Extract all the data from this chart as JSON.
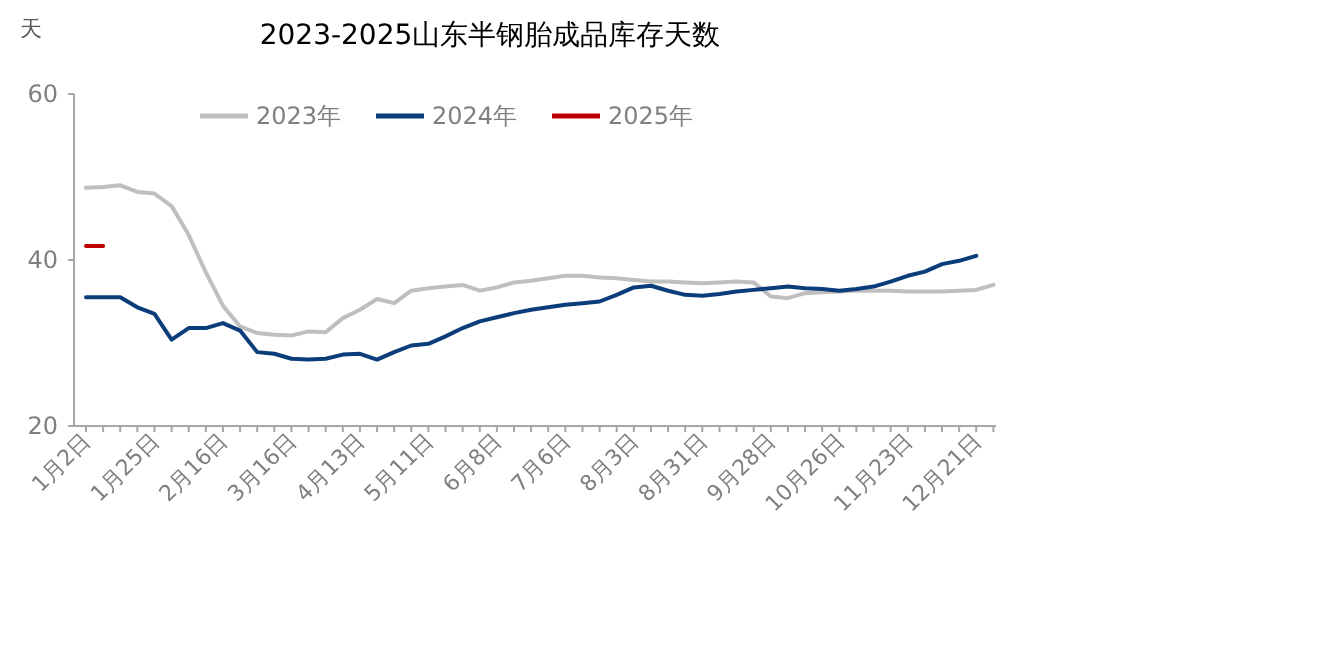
{
  "chart_data": {
    "type": "line",
    "title": "2023-2025山东半钢胎成品库存天数",
    "ylabel": "天",
    "categories": [
      "1月2日",
      null,
      null,
      null,
      "1月25日",
      null,
      null,
      null,
      "2月16日",
      null,
      null,
      null,
      "3月16日",
      null,
      null,
      null,
      "4月13日",
      null,
      null,
      null,
      "5月11日",
      null,
      null,
      null,
      "6月8日",
      null,
      null,
      null,
      "7月6日",
      null,
      null,
      null,
      "8月3日",
      null,
      null,
      null,
      "8月31日",
      null,
      null,
      null,
      "9月28日",
      null,
      null,
      null,
      "10月26日",
      null,
      null,
      null,
      "11月23日",
      null,
      null,
      null,
      "12月21日",
      null
    ],
    "series": [
      {
        "name": "2023年",
        "color": "#bfbfbf",
        "values": [
          48.7,
          48.8,
          49.0,
          48.2,
          48.0,
          46.5,
          43.0,
          38.5,
          34.5,
          32.0,
          31.2,
          31.0,
          30.9,
          31.4,
          31.3,
          33.0,
          34.0,
          35.3,
          34.8,
          36.3,
          36.6,
          36.8,
          37.0,
          36.3,
          36.7,
          37.3,
          37.5,
          37.8,
          38.1,
          38.1,
          37.9,
          37.8,
          37.6,
          37.4,
          37.4,
          37.3,
          37.2,
          37.3,
          37.4,
          37.3,
          35.6,
          35.4,
          36.0,
          36.1,
          36.2,
          36.3,
          36.3,
          36.3,
          36.2,
          36.2,
          36.2,
          36.3,
          36.4,
          37.0
        ]
      },
      {
        "name": "2024年",
        "color": "#0a3d7a",
        "values": [
          35.5,
          35.5,
          35.5,
          34.3,
          33.5,
          30.4,
          31.8,
          31.8,
          32.4,
          31.5,
          28.9,
          28.7,
          28.1,
          28.0,
          28.1,
          28.6,
          28.7,
          28.0,
          28.9,
          29.7,
          29.9,
          30.8,
          31.8,
          32.6,
          33.1,
          33.6,
          34.0,
          34.3,
          34.6,
          34.8,
          35.0,
          35.8,
          36.7,
          36.9,
          36.3,
          35.8,
          35.7,
          35.9,
          36.2,
          36.4,
          36.6,
          36.8,
          36.6,
          36.5,
          36.3,
          36.5,
          36.8,
          37.4,
          38.1,
          38.6,
          39.5,
          39.9,
          40.5,
          null
        ]
      },
      {
        "name": "2025年",
        "color": "#c00000",
        "values": [
          41.7,
          41.7,
          null,
          null,
          null,
          null,
          null,
          null,
          null,
          null,
          null,
          null,
          null,
          null,
          null,
          null,
          null,
          null,
          null,
          null,
          null,
          null,
          null,
          null,
          null,
          null,
          null,
          null,
          null,
          null,
          null,
          null,
          null,
          null,
          null,
          null,
          null,
          null,
          null,
          null,
          null,
          null,
          null,
          null,
          null,
          null,
          null,
          null,
          null,
          null,
          null,
          null,
          null,
          null
        ]
      }
    ],
    "ylim": [
      20,
      60
    ],
    "yticks": [
      20,
      40,
      60
    ],
    "grid": false,
    "legend": "top",
    "marker": "none",
    "line_style": "solid"
  }
}
